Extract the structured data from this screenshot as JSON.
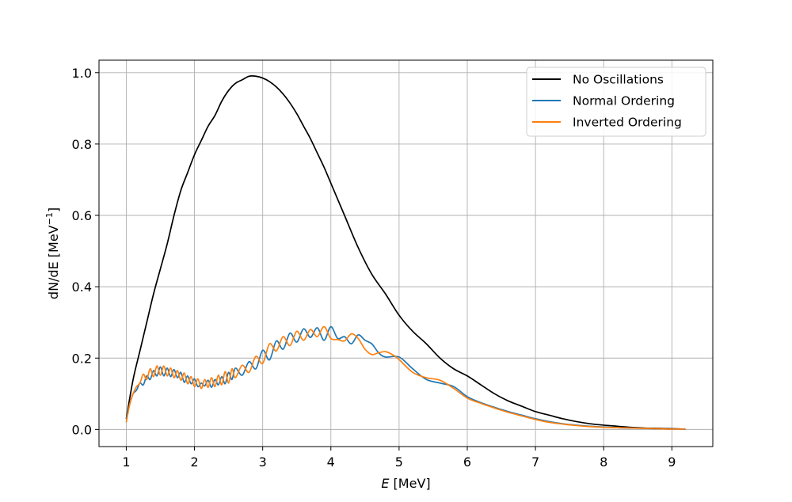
{
  "chart_data": {
    "type": "line",
    "title": "",
    "xlabel": {
      "italic": "E",
      "rest": " [MeV]"
    },
    "ylabel": {
      "main": "dN/dE [MeV",
      "sup": "−1",
      "close": "]"
    },
    "xlim": [
      0.6,
      9.6
    ],
    "ylim": [
      -0.048,
      1.035
    ],
    "xticks": [
      1,
      2,
      3,
      4,
      5,
      6,
      7,
      8,
      9
    ],
    "xtick_labels": [
      "1",
      "2",
      "3",
      "4",
      "5",
      "6",
      "7",
      "8",
      "9"
    ],
    "yticks": [
      0.0,
      0.2,
      0.4,
      0.6,
      0.8,
      1.0
    ],
    "ytick_labels": [
      "0.0",
      "0.2",
      "0.4",
      "0.6",
      "0.8",
      "1.0"
    ],
    "grid": true,
    "legend_position": "top-right",
    "series": [
      {
        "name": "No Oscillations",
        "color": "#000000",
        "points": [
          [
            1.0,
            0.03
          ],
          [
            1.1,
            0.14
          ],
          [
            1.2,
            0.22
          ],
          [
            1.3,
            0.3
          ],
          [
            1.4,
            0.38
          ],
          [
            1.5,
            0.45
          ],
          [
            1.6,
            0.52
          ],
          [
            1.7,
            0.6
          ],
          [
            1.8,
            0.67
          ],
          [
            1.9,
            0.72
          ],
          [
            2.0,
            0.77
          ],
          [
            2.1,
            0.81
          ],
          [
            2.2,
            0.85
          ],
          [
            2.3,
            0.88
          ],
          [
            2.4,
            0.92
          ],
          [
            2.5,
            0.95
          ],
          [
            2.6,
            0.97
          ],
          [
            2.7,
            0.98
          ],
          [
            2.8,
            0.99
          ],
          [
            2.9,
            0.99
          ],
          [
            3.0,
            0.985
          ],
          [
            3.1,
            0.975
          ],
          [
            3.2,
            0.96
          ],
          [
            3.3,
            0.94
          ],
          [
            3.4,
            0.915
          ],
          [
            3.5,
            0.885
          ],
          [
            3.6,
            0.85
          ],
          [
            3.7,
            0.815
          ],
          [
            3.8,
            0.775
          ],
          [
            3.9,
            0.735
          ],
          [
            4.0,
            0.69
          ],
          [
            4.2,
            0.6
          ],
          [
            4.4,
            0.51
          ],
          [
            4.6,
            0.435
          ],
          [
            4.8,
            0.38
          ],
          [
            5.0,
            0.32
          ],
          [
            5.2,
            0.275
          ],
          [
            5.4,
            0.24
          ],
          [
            5.6,
            0.2
          ],
          [
            5.8,
            0.17
          ],
          [
            6.0,
            0.15
          ],
          [
            6.2,
            0.125
          ],
          [
            6.4,
            0.1
          ],
          [
            6.6,
            0.08
          ],
          [
            6.8,
            0.065
          ],
          [
            7.0,
            0.05
          ],
          [
            7.2,
            0.04
          ],
          [
            7.4,
            0.03
          ],
          [
            7.6,
            0.022
          ],
          [
            7.8,
            0.016
          ],
          [
            8.0,
            0.012
          ],
          [
            8.2,
            0.009
          ],
          [
            8.4,
            0.006
          ],
          [
            8.6,
            0.004
          ],
          [
            8.8,
            0.003
          ],
          [
            9.0,
            0.002
          ],
          [
            9.2,
            0.001
          ]
        ]
      },
      {
        "name": "Normal Ordering",
        "color": "#1f77b4",
        "points": [
          [
            1.0,
            0.03
          ],
          [
            1.05,
            0.07
          ],
          [
            1.1,
            0.1
          ],
          [
            1.15,
            0.11
          ],
          [
            1.2,
            0.13
          ],
          [
            1.25,
            0.125
          ],
          [
            1.3,
            0.15
          ],
          [
            1.35,
            0.14
          ],
          [
            1.4,
            0.165
          ],
          [
            1.45,
            0.15
          ],
          [
            1.5,
            0.175
          ],
          [
            1.55,
            0.15
          ],
          [
            1.6,
            0.172
          ],
          [
            1.65,
            0.148
          ],
          [
            1.7,
            0.168
          ],
          [
            1.75,
            0.145
          ],
          [
            1.8,
            0.16
          ],
          [
            1.85,
            0.132
          ],
          [
            1.9,
            0.15
          ],
          [
            1.95,
            0.128
          ],
          [
            2.0,
            0.142
          ],
          [
            2.05,
            0.12
          ],
          [
            2.1,
            0.13
          ],
          [
            2.15,
            0.122
          ],
          [
            2.2,
            0.138
          ],
          [
            2.25,
            0.118
          ],
          [
            2.3,
            0.14
          ],
          [
            2.35,
            0.125
          ],
          [
            2.4,
            0.148
          ],
          [
            2.45,
            0.128
          ],
          [
            2.5,
            0.16
          ],
          [
            2.55,
            0.14
          ],
          [
            2.6,
            0.172
          ],
          [
            2.7,
            0.152
          ],
          [
            2.8,
            0.19
          ],
          [
            2.9,
            0.17
          ],
          [
            3.0,
            0.222
          ],
          [
            3.1,
            0.195
          ],
          [
            3.2,
            0.248
          ],
          [
            3.3,
            0.225
          ],
          [
            3.4,
            0.27
          ],
          [
            3.5,
            0.245
          ],
          [
            3.6,
            0.282
          ],
          [
            3.7,
            0.258
          ],
          [
            3.8,
            0.285
          ],
          [
            3.9,
            0.25
          ],
          [
            4.0,
            0.288
          ],
          [
            4.1,
            0.255
          ],
          [
            4.2,
            0.26
          ],
          [
            4.3,
            0.24
          ],
          [
            4.4,
            0.265
          ],
          [
            4.5,
            0.25
          ],
          [
            4.6,
            0.24
          ],
          [
            4.7,
            0.215
          ],
          [
            4.8,
            0.203
          ],
          [
            5.0,
            0.203
          ],
          [
            5.2,
            0.17
          ],
          [
            5.4,
            0.14
          ],
          [
            5.6,
            0.13
          ],
          [
            5.8,
            0.12
          ],
          [
            6.0,
            0.092
          ],
          [
            6.2,
            0.075
          ],
          [
            6.4,
            0.062
          ],
          [
            6.6,
            0.05
          ],
          [
            6.8,
            0.04
          ],
          [
            7.0,
            0.03
          ],
          [
            7.2,
            0.022
          ],
          [
            7.4,
            0.016
          ],
          [
            7.6,
            0.012
          ],
          [
            7.8,
            0.009
          ],
          [
            8.0,
            0.007
          ],
          [
            8.2,
            0.005
          ],
          [
            8.4,
            0.004
          ],
          [
            8.6,
            0.003
          ],
          [
            8.8,
            0.002
          ],
          [
            9.0,
            0.001
          ],
          [
            9.2,
            0.001
          ]
        ]
      },
      {
        "name": "Inverted Ordering",
        "color": "#ff7f0e",
        "points": [
          [
            1.0,
            0.02
          ],
          [
            1.05,
            0.07
          ],
          [
            1.1,
            0.1
          ],
          [
            1.15,
            0.12
          ],
          [
            1.2,
            0.13
          ],
          [
            1.25,
            0.155
          ],
          [
            1.3,
            0.14
          ],
          [
            1.35,
            0.17
          ],
          [
            1.4,
            0.148
          ],
          [
            1.45,
            0.178
          ],
          [
            1.5,
            0.152
          ],
          [
            1.55,
            0.178
          ],
          [
            1.6,
            0.15
          ],
          [
            1.65,
            0.172
          ],
          [
            1.7,
            0.145
          ],
          [
            1.75,
            0.165
          ],
          [
            1.8,
            0.138
          ],
          [
            1.85,
            0.158
          ],
          [
            1.9,
            0.128
          ],
          [
            1.95,
            0.148
          ],
          [
            2.0,
            0.12
          ],
          [
            2.05,
            0.142
          ],
          [
            2.1,
            0.115
          ],
          [
            2.15,
            0.14
          ],
          [
            2.2,
            0.118
          ],
          [
            2.25,
            0.145
          ],
          [
            2.3,
            0.12
          ],
          [
            2.35,
            0.152
          ],
          [
            2.4,
            0.125
          ],
          [
            2.45,
            0.162
          ],
          [
            2.5,
            0.13
          ],
          [
            2.55,
            0.17
          ],
          [
            2.6,
            0.145
          ],
          [
            2.7,
            0.18
          ],
          [
            2.8,
            0.16
          ],
          [
            2.9,
            0.205
          ],
          [
            3.0,
            0.185
          ],
          [
            3.1,
            0.24
          ],
          [
            3.2,
            0.22
          ],
          [
            3.3,
            0.26
          ],
          [
            3.4,
            0.235
          ],
          [
            3.5,
            0.275
          ],
          [
            3.6,
            0.25
          ],
          [
            3.7,
            0.28
          ],
          [
            3.8,
            0.26
          ],
          [
            3.9,
            0.288
          ],
          [
            4.0,
            0.255
          ],
          [
            4.1,
            0.252
          ],
          [
            4.2,
            0.248
          ],
          [
            4.3,
            0.268
          ],
          [
            4.4,
            0.255
          ],
          [
            4.5,
            0.225
          ],
          [
            4.6,
            0.21
          ],
          [
            4.7,
            0.215
          ],
          [
            4.8,
            0.218
          ],
          [
            4.9,
            0.21
          ],
          [
            5.0,
            0.196
          ],
          [
            5.2,
            0.16
          ],
          [
            5.4,
            0.145
          ],
          [
            5.6,
            0.138
          ],
          [
            5.8,
            0.115
          ],
          [
            6.0,
            0.088
          ],
          [
            6.2,
            0.073
          ],
          [
            6.4,
            0.06
          ],
          [
            6.6,
            0.048
          ],
          [
            6.8,
            0.038
          ],
          [
            7.0,
            0.028
          ],
          [
            7.2,
            0.02
          ],
          [
            7.4,
            0.015
          ],
          [
            7.6,
            0.011
          ],
          [
            7.8,
            0.008
          ],
          [
            8.0,
            0.006
          ],
          [
            8.2,
            0.005
          ],
          [
            8.4,
            0.004
          ],
          [
            8.6,
            0.003
          ],
          [
            8.8,
            0.002
          ],
          [
            9.0,
            0.001
          ],
          [
            9.2,
            0.001
          ]
        ]
      }
    ]
  }
}
